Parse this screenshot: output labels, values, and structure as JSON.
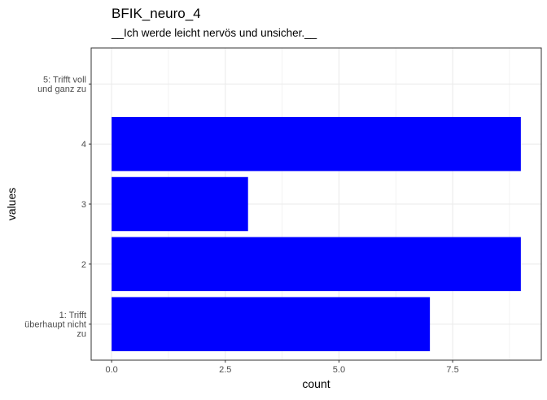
{
  "chart_data": {
    "type": "bar",
    "orientation": "horizontal",
    "title": "BFIK_neuro_4",
    "subtitle": "__Ich werde leicht nervös und unsicher.__",
    "xlabel": "count",
    "ylabel": "values",
    "categories": [
      "1: Trifft überhaupt nicht zu",
      "2",
      "3",
      "4",
      "5: Trifft voll und ganz zu"
    ],
    "category_label_lines": [
      [
        "1: Trifft",
        "überhaupt nicht",
        "zu"
      ],
      [
        "2"
      ],
      [
        "3"
      ],
      [
        "4"
      ],
      [
        "5: Trifft voll",
        "und ganz zu"
      ]
    ],
    "values": [
      7,
      9,
      3,
      9,
      0
    ],
    "xlim": [
      -0.45,
      9.45
    ],
    "x_ticks": [
      0,
      2.5,
      5,
      7.5
    ],
    "x_tick_labels": [
      "0.0",
      "2.5",
      "5.0",
      "7.5"
    ],
    "bar_color": "#0000ff",
    "grid": true,
    "grid_color": "#ebebeb",
    "panel_border_color": "#333333",
    "legend": "none"
  }
}
